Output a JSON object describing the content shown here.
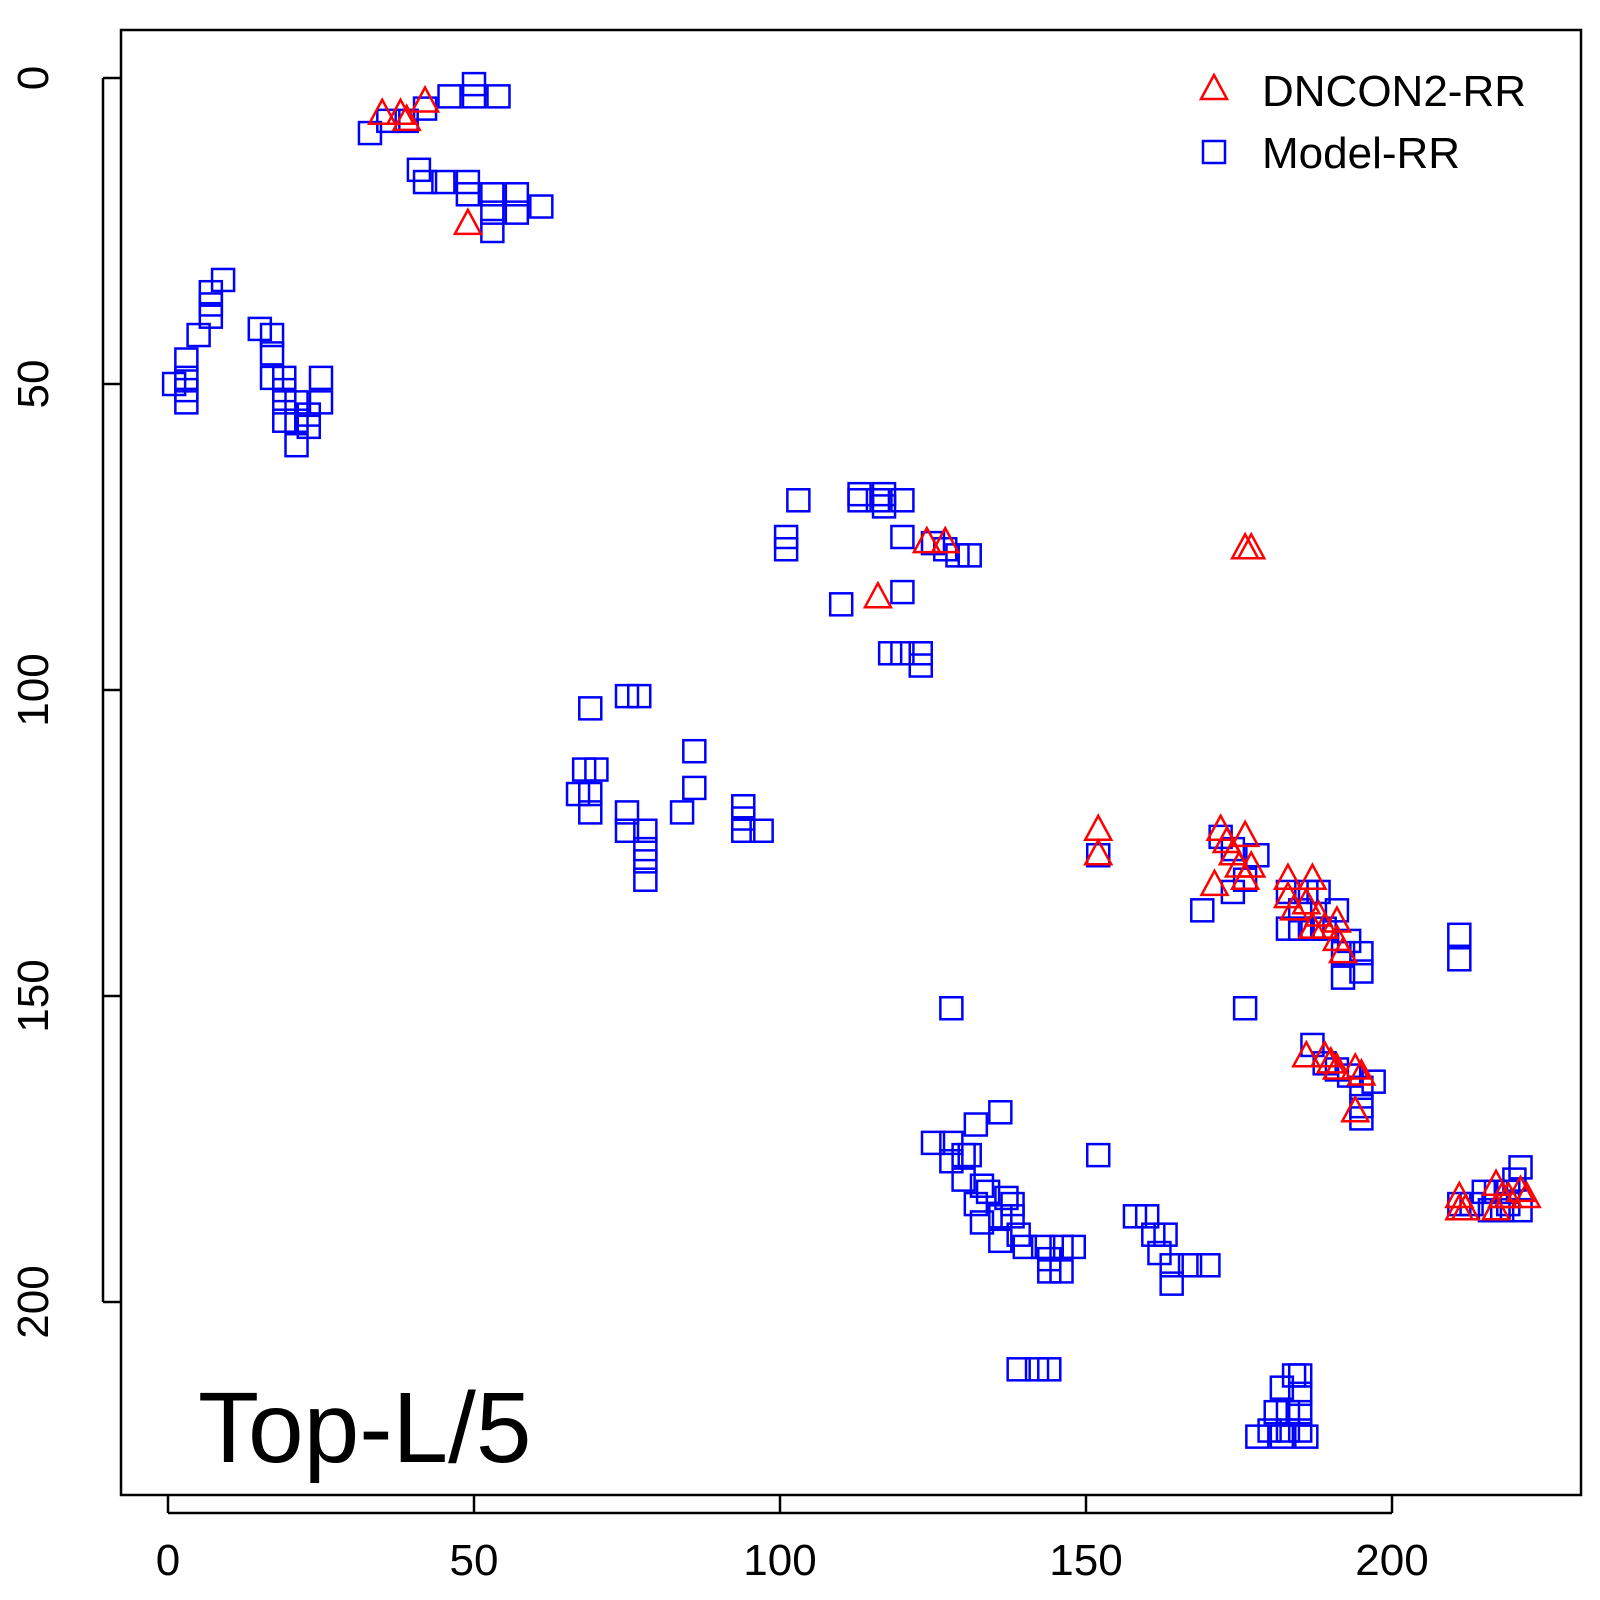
{
  "chart_data": {
    "type": "scatter",
    "title": "",
    "xlabel": "",
    "ylabel": "",
    "xlim": [
      -8,
      224
    ],
    "ylim": [
      230,
      -8
    ],
    "y_reversed": true,
    "x_ticks": [
      0,
      50,
      100,
      150,
      200
    ],
    "y_ticks": [
      0,
      50,
      100,
      150,
      200
    ],
    "grid": false,
    "legend_position": "top-right",
    "annotation": "Top-L/5",
    "series": [
      {
        "name": "DNCON2-RR",
        "marker": "triangle",
        "color": "#ff0000",
        "points": [
          [
            35,
            6
          ],
          [
            38,
            6
          ],
          [
            39,
            7
          ],
          [
            42,
            4
          ],
          [
            49,
            24
          ],
          [
            116,
            85
          ],
          [
            124,
            76
          ],
          [
            127,
            76
          ],
          [
            176,
            77
          ],
          [
            177,
            77
          ],
          [
            152,
            123
          ],
          [
            152,
            127
          ],
          [
            172,
            123
          ],
          [
            173,
            125
          ],
          [
            176,
            124
          ],
          [
            174,
            127
          ],
          [
            175,
            129
          ],
          [
            177,
            129
          ],
          [
            176,
            131
          ],
          [
            171,
            132
          ],
          [
            183,
            131
          ],
          [
            183,
            134
          ],
          [
            184,
            136
          ],
          [
            187,
            131
          ],
          [
            186,
            135
          ],
          [
            188,
            137
          ],
          [
            187,
            139
          ],
          [
            189,
            139
          ],
          [
            191,
            138
          ],
          [
            191,
            141
          ],
          [
            192,
            143
          ],
          [
            186,
            160
          ],
          [
            189,
            160
          ],
          [
            190,
            161
          ],
          [
            191,
            162
          ],
          [
            194,
            162
          ],
          [
            195,
            163
          ],
          [
            194,
            169
          ],
          [
            211,
            183
          ],
          [
            211,
            185
          ],
          [
            212,
            185
          ],
          [
            217,
            181
          ],
          [
            218,
            183
          ],
          [
            217,
            185
          ],
          [
            219,
            183
          ],
          [
            221,
            182
          ],
          [
            222,
            183
          ]
        ]
      },
      {
        "name": "Model-RR",
        "marker": "square",
        "color": "#0000ff",
        "points": [
          [
            33,
            9
          ],
          [
            36,
            7
          ],
          [
            39,
            7
          ],
          [
            42,
            5
          ],
          [
            46,
            3
          ],
          [
            50,
            1
          ],
          [
            50,
            3
          ],
          [
            54,
            3
          ],
          [
            41,
            15
          ],
          [
            42,
            17
          ],
          [
            45,
            17
          ],
          [
            49,
            17
          ],
          [
            49,
            19
          ],
          [
            53,
            19
          ],
          [
            53,
            22
          ],
          [
            53,
            25
          ],
          [
            57,
            19
          ],
          [
            57,
            22
          ],
          [
            61,
            21
          ],
          [
            9,
            33
          ],
          [
            7,
            35
          ],
          [
            7,
            37
          ],
          [
            7,
            39
          ],
          [
            5,
            42
          ],
          [
            3,
            46
          ],
          [
            3,
            49
          ],
          [
            1,
            50
          ],
          [
            3,
            51
          ],
          [
            3,
            53
          ],
          [
            15,
            41
          ],
          [
            17,
            42
          ],
          [
            17,
            45
          ],
          [
            17,
            49
          ],
          [
            19,
            49
          ],
          [
            19,
            51
          ],
          [
            19,
            53
          ],
          [
            19,
            56
          ],
          [
            21,
            53
          ],
          [
            21,
            56
          ],
          [
            21,
            60
          ],
          [
            23,
            55
          ],
          [
            23,
            57
          ],
          [
            25,
            49
          ],
          [
            25,
            53
          ],
          [
            103,
            69
          ],
          [
            101,
            75
          ],
          [
            101,
            77
          ],
          [
            113,
            68
          ],
          [
            113,
            69
          ],
          [
            116,
            69
          ],
          [
            117,
            68
          ],
          [
            117,
            70
          ],
          [
            120,
            69
          ],
          [
            120,
            75
          ],
          [
            125,
            76
          ],
          [
            127,
            77
          ],
          [
            129,
            78
          ],
          [
            131,
            78
          ],
          [
            120,
            84
          ],
          [
            110,
            86
          ],
          [
            118,
            94
          ],
          [
            120,
            94
          ],
          [
            123,
            94
          ],
          [
            123,
            96
          ],
          [
            69,
            103
          ],
          [
            75,
            101
          ],
          [
            77,
            101
          ],
          [
            68,
            113
          ],
          [
            70,
            113
          ],
          [
            67,
            117
          ],
          [
            69,
            117
          ],
          [
            69,
            120
          ],
          [
            75,
            120
          ],
          [
            75,
            123
          ],
          [
            78,
            123
          ],
          [
            78,
            126
          ],
          [
            78,
            128
          ],
          [
            78,
            131
          ],
          [
            86,
            110
          ],
          [
            86,
            116
          ],
          [
            84,
            120
          ],
          [
            94,
            119
          ],
          [
            94,
            121
          ],
          [
            94,
            123
          ],
          [
            97,
            123
          ],
          [
            152,
            127
          ],
          [
            172,
            124
          ],
          [
            174,
            126
          ],
          [
            178,
            127
          ],
          [
            176,
            131
          ],
          [
            174,
            133
          ],
          [
            169,
            136
          ],
          [
            183,
            133
          ],
          [
            186,
            133
          ],
          [
            188,
            133
          ],
          [
            185,
            136
          ],
          [
            185,
            139
          ],
          [
            187,
            139
          ],
          [
            191,
            136
          ],
          [
            183,
            139
          ],
          [
            189,
            139
          ],
          [
            193,
            141
          ],
          [
            192,
            143
          ],
          [
            195,
            143
          ],
          [
            195,
            146
          ],
          [
            192,
            147
          ],
          [
            211,
            140
          ],
          [
            211,
            144
          ],
          [
            128,
            152
          ],
          [
            176,
            152
          ],
          [
            187,
            158
          ],
          [
            189,
            161
          ],
          [
            191,
            162
          ],
          [
            193,
            163
          ],
          [
            197,
            164
          ],
          [
            195,
            165
          ],
          [
            195,
            168
          ],
          [
            195,
            170
          ],
          [
            125,
            174
          ],
          [
            128,
            174
          ],
          [
            128,
            177
          ],
          [
            130,
            176
          ],
          [
            132,
            171
          ],
          [
            136,
            169
          ],
          [
            131,
            176
          ],
          [
            130,
            180
          ],
          [
            133,
            181
          ],
          [
            134,
            182
          ],
          [
            132,
            184
          ],
          [
            133,
            187
          ],
          [
            137,
            183
          ],
          [
            138,
            184
          ],
          [
            136,
            186
          ],
          [
            138,
            186
          ],
          [
            136,
            190
          ],
          [
            139,
            189
          ],
          [
            140,
            191
          ],
          [
            152,
            176
          ],
          [
            143,
            191
          ],
          [
            144,
            193
          ],
          [
            146,
            191
          ],
          [
            148,
            191
          ],
          [
            144,
            195
          ],
          [
            146,
            195
          ],
          [
            158,
            186
          ],
          [
            160,
            186
          ],
          [
            161,
            189
          ],
          [
            163,
            189
          ],
          [
            162,
            192
          ],
          [
            164,
            194
          ],
          [
            167,
            194
          ],
          [
            170,
            194
          ],
          [
            164,
            197
          ],
          [
            139,
            211
          ],
          [
            142,
            211
          ],
          [
            144,
            211
          ],
          [
            184,
            212
          ],
          [
            185,
            212
          ],
          [
            182,
            214
          ],
          [
            183,
            218
          ],
          [
            181,
            218
          ],
          [
            185,
            218
          ],
          [
            183,
            221
          ],
          [
            178,
            222
          ],
          [
            180,
            221
          ],
          [
            182,
            222
          ],
          [
            185,
            221
          ],
          [
            186,
            222
          ],
          [
            185,
            215
          ],
          [
            211,
            184
          ],
          [
            213,
            184
          ],
          [
            215,
            182
          ],
          [
            217,
            182
          ],
          [
            219,
            182
          ],
          [
            221,
            178
          ],
          [
            220,
            180
          ],
          [
            219,
            184
          ],
          [
            221,
            185
          ],
          [
            216,
            185
          ],
          [
            218,
            185
          ]
        ]
      }
    ]
  }
}
